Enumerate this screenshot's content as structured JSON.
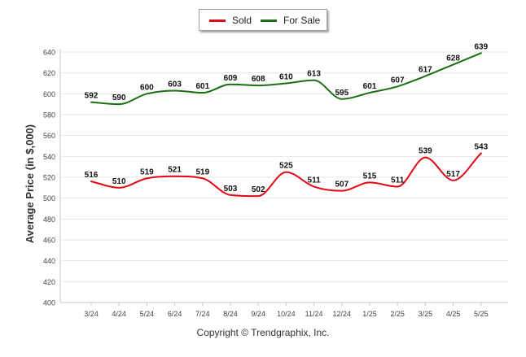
{
  "chart_data": {
    "type": "line",
    "ylabel": "Average Price (in $,000)",
    "xlabel": "",
    "ylim": [
      400,
      640
    ],
    "yticks": [
      400,
      420,
      440,
      460,
      480,
      500,
      520,
      540,
      560,
      580,
      600,
      620,
      640
    ],
    "categories": [
      "3/24",
      "4/24",
      "5/24",
      "6/24",
      "7/24",
      "8/24",
      "9/24",
      "10/24",
      "11/24",
      "12/24",
      "1/25",
      "2/25",
      "3/25",
      "4/25",
      "5/25"
    ],
    "series": [
      {
        "name": "Sold",
        "color": "#e30613",
        "values": [
          516,
          510,
          519,
          521,
          519,
          503,
          502,
          525,
          511,
          507,
          515,
          511,
          539,
          517,
          543
        ]
      },
      {
        "name": "For Sale",
        "color": "#1b6e12",
        "values": [
          592,
          590,
          600,
          603,
          601,
          609,
          608,
          610,
          613,
          595,
          601,
          607,
          617,
          628,
          639
        ]
      }
    ],
    "legend_position": "top-center",
    "grid": true
  },
  "footer": {
    "copyright": "Copyright © Trendgraphix, Inc."
  }
}
